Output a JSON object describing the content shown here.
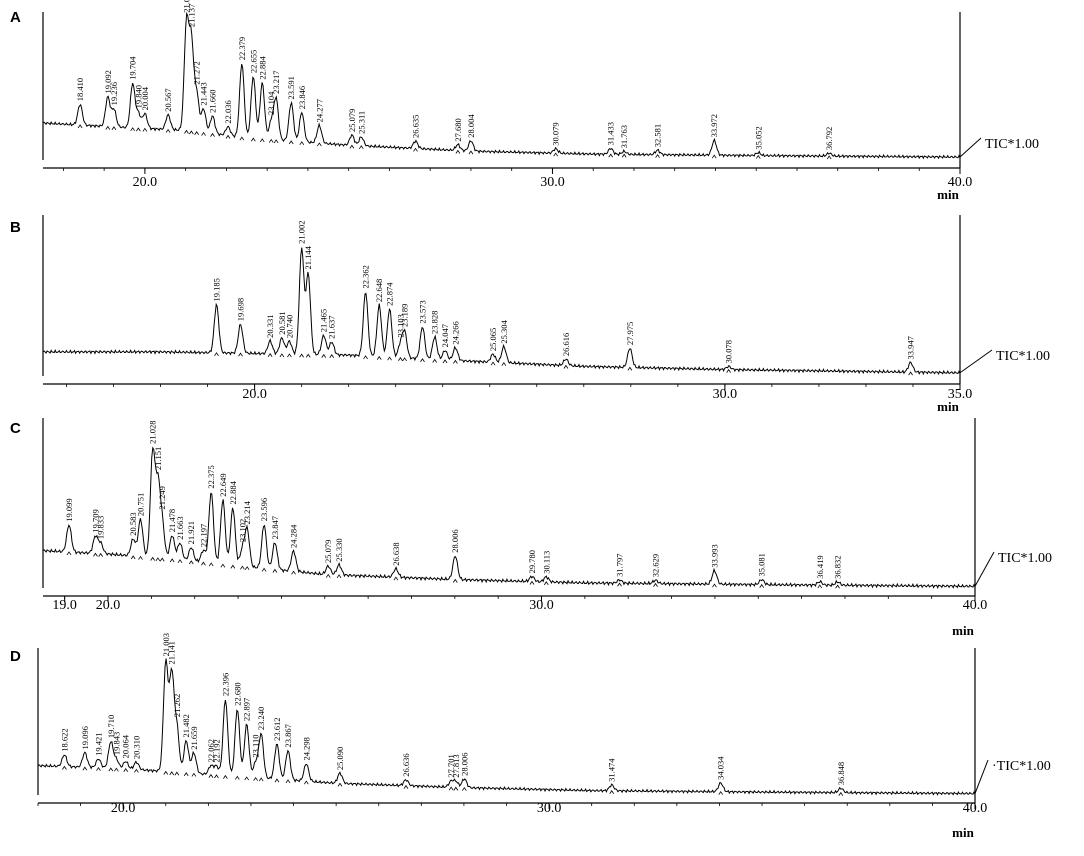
{
  "chart_data": [
    {
      "type": "line",
      "panel_label": "A",
      "trace_label": "TIC*1.00",
      "xlim": [
        17.5,
        40.0
      ],
      "xticks": [
        {
          "v": 20.0,
          "t": "20.0"
        },
        {
          "v": 30.0,
          "t": "30.0"
        },
        {
          "v": 40.0,
          "t": "40.0"
        }
      ],
      "xunit": "min",
      "baseline": [
        [
          17.5,
          0.25
        ],
        [
          19.5,
          0.22
        ],
        [
          21,
          0.2
        ],
        [
          22.5,
          0.15
        ],
        [
          25,
          0.1
        ],
        [
          28,
          0.06
        ],
        [
          31,
          0.04
        ],
        [
          35,
          0.03
        ],
        [
          40,
          0.02
        ]
      ],
      "peaks": [
        {
          "t": "18.410",
          "x": 18.41,
          "h": 0.14
        },
        {
          "t": "19.092",
          "x": 19.09,
          "h": 0.2
        },
        {
          "t": "19.236",
          "x": 19.24,
          "h": 0.12
        },
        {
          "t": "19.704",
          "x": 19.7,
          "h": 0.3
        },
        {
          "t": "19.840",
          "x": 19.84,
          "h": 0.1
        },
        {
          "t": "20.004",
          "x": 20.0,
          "h": 0.1
        },
        {
          "t": "20.567",
          "x": 20.57,
          "h": 0.1
        },
        {
          "t": "21.023",
          "x": 21.02,
          "h": 0.72
        },
        {
          "t": "21.137",
          "x": 21.14,
          "h": 0.6
        },
        {
          "t": "21.272",
          "x": 21.27,
          "h": 0.26
        },
        {
          "t": "21.443",
          "x": 21.44,
          "h": 0.16
        },
        {
          "t": "21.660",
          "x": 21.66,
          "h": 0.12
        },
        {
          "t": "22.036",
          "x": 22.04,
          "h": 0.06
        },
        {
          "t": "22.379",
          "x": 22.38,
          "h": 0.5
        },
        {
          "t": "22.655",
          "x": 22.66,
          "h": 0.42
        },
        {
          "t": "22.884",
          "x": 22.88,
          "h": 0.38
        },
        {
          "t": "23.104",
          "x": 23.1,
          "h": 0.12
        },
        {
          "t": "23.217",
          "x": 23.22,
          "h": 0.28
        },
        {
          "t": "23.591",
          "x": 23.59,
          "h": 0.26
        },
        {
          "t": "23.846",
          "x": 23.85,
          "h": 0.2
        },
        {
          "t": "24.277",
          "x": 24.28,
          "h": 0.12
        },
        {
          "t": "25.079",
          "x": 25.08,
          "h": 0.07
        },
        {
          "t": "25.311",
          "x": 25.31,
          "h": 0.06
        },
        {
          "t": "26.635",
          "x": 26.64,
          "h": 0.05
        },
        {
          "t": "27.680",
          "x": 27.68,
          "h": 0.04
        },
        {
          "t": "28.004",
          "x": 28.0,
          "h": 0.07
        },
        {
          "t": "30.079",
          "x": 30.08,
          "h": 0.03
        },
        {
          "t": "31.433",
          "x": 31.43,
          "h": 0.04
        },
        {
          "t": "31.763",
          "x": 31.76,
          "h": 0.02
        },
        {
          "t": "32.581",
          "x": 32.58,
          "h": 0.03
        },
        {
          "t": "33.972",
          "x": 33.97,
          "h": 0.1
        },
        {
          "t": "35.052",
          "x": 35.05,
          "h": 0.02
        },
        {
          "t": "36.792",
          "x": 36.79,
          "h": 0.02
        }
      ]
    },
    {
      "type": "line",
      "panel_label": "B",
      "trace_label": "TIC*1.00",
      "xlim": [
        15.5,
        35.0
      ],
      "xticks": [
        {
          "v": 20.0,
          "t": "20.0"
        },
        {
          "v": 30.0,
          "t": "30.0"
        },
        {
          "v": 35.0,
          "t": "35.0"
        }
      ],
      "xunit": "min",
      "baseline": [
        [
          15.5,
          0.15
        ],
        [
          18,
          0.15
        ],
        [
          20,
          0.14
        ],
        [
          22,
          0.13
        ],
        [
          24,
          0.1
        ],
        [
          27,
          0.06
        ],
        [
          30,
          0.04
        ],
        [
          35,
          0.02
        ]
      ],
      "peaks": [
        {
          "t": "19.185",
          "x": 19.19,
          "h": 0.3
        },
        {
          "t": "19.698",
          "x": 19.7,
          "h": 0.18
        },
        {
          "t": "20.331",
          "x": 20.33,
          "h": 0.08
        },
        {
          "t": "20.581",
          "x": 20.58,
          "h": 0.1
        },
        {
          "t": "20.740",
          "x": 20.74,
          "h": 0.08
        },
        {
          "t": "21.002",
          "x": 21.0,
          "h": 0.66
        },
        {
          "t": "21.144",
          "x": 21.14,
          "h": 0.5
        },
        {
          "t": "21.465",
          "x": 21.47,
          "h": 0.12
        },
        {
          "t": "21.637",
          "x": 21.64,
          "h": 0.08
        },
        {
          "t": "22.362",
          "x": 22.36,
          "h": 0.4
        },
        {
          "t": "22.648",
          "x": 22.65,
          "h": 0.32
        },
        {
          "t": "22.874",
          "x": 22.87,
          "h": 0.3
        },
        {
          "t": "23.103",
          "x": 23.1,
          "h": 0.08
        },
        {
          "t": "23.189",
          "x": 23.19,
          "h": 0.16
        },
        {
          "t": "23.573",
          "x": 23.57,
          "h": 0.2
        },
        {
          "t": "23.828",
          "x": 23.83,
          "h": 0.14
        },
        {
          "t": "24.047",
          "x": 24.05,
          "h": 0.06
        },
        {
          "t": "24.266",
          "x": 24.27,
          "h": 0.08
        },
        {
          "t": "25.065",
          "x": 25.07,
          "h": 0.05
        },
        {
          "t": "25.304",
          "x": 25.3,
          "h": 0.1
        },
        {
          "t": "26.616",
          "x": 26.62,
          "h": 0.04
        },
        {
          "t": "27.975",
          "x": 27.98,
          "h": 0.12
        },
        {
          "t": "30.078",
          "x": 30.08,
          "h": 0.02
        },
        {
          "t": "33.947",
          "x": 33.95,
          "h": 0.06
        }
      ]
    },
    {
      "type": "line",
      "panel_label": "C",
      "trace_label": "TIC*1.00",
      "xlim": [
        18.5,
        40.0
      ],
      "xticks": [
        {
          "v": 19.0,
          "t": "19.0"
        },
        {
          "v": 20.0,
          "t": "20.0"
        },
        {
          "v": 30.0,
          "t": "30.0"
        },
        {
          "v": 40.0,
          "t": "40.0"
        }
      ],
      "xunit": "min",
      "baseline": [
        [
          18.5,
          0.22
        ],
        [
          20,
          0.2
        ],
        [
          21.5,
          0.17
        ],
        [
          23,
          0.13
        ],
        [
          25,
          0.08
        ],
        [
          28,
          0.05
        ],
        [
          31,
          0.03
        ],
        [
          35,
          0.02
        ],
        [
          40,
          0.01
        ]
      ],
      "peaks": [
        {
          "t": "19.099",
          "x": 19.1,
          "h": 0.16
        },
        {
          "t": "19.709",
          "x": 19.71,
          "h": 0.1
        },
        {
          "t": "19.833",
          "x": 19.83,
          "h": 0.06
        },
        {
          "t": "20.583",
          "x": 20.58,
          "h": 0.1
        },
        {
          "t": "20.751",
          "x": 20.75,
          "h": 0.22
        },
        {
          "t": "21.028",
          "x": 21.03,
          "h": 0.62
        },
        {
          "t": "21.151",
          "x": 21.15,
          "h": 0.42
        },
        {
          "t": "21.249",
          "x": 21.25,
          "h": 0.2
        },
        {
          "t": "21.478",
          "x": 21.48,
          "h": 0.14
        },
        {
          "t": "21.663",
          "x": 21.66,
          "h": 0.1
        },
        {
          "t": "21.921",
          "x": 21.92,
          "h": 0.08
        },
        {
          "t": "22.197",
          "x": 22.2,
          "h": 0.07
        },
        {
          "t": "22.375",
          "x": 22.38,
          "h": 0.42
        },
        {
          "t": "22.649",
          "x": 22.65,
          "h": 0.38
        },
        {
          "t": "22.884",
          "x": 22.88,
          "h": 0.34
        },
        {
          "t": "23.102",
          "x": 23.1,
          "h": 0.1
        },
        {
          "t": "23.214",
          "x": 23.21,
          "h": 0.22
        },
        {
          "t": "23.596",
          "x": 23.6,
          "h": 0.26
        },
        {
          "t": "23.847",
          "x": 23.85,
          "h": 0.16
        },
        {
          "t": "24.284",
          "x": 24.28,
          "h": 0.12
        },
        {
          "t": "25.079",
          "x": 25.08,
          "h": 0.05
        },
        {
          "t": "25.330",
          "x": 25.33,
          "h": 0.06
        },
        {
          "t": "26.638",
          "x": 26.64,
          "h": 0.05
        },
        {
          "t": "28.006",
          "x": 28.01,
          "h": 0.14
        },
        {
          "t": "29.780",
          "x": 29.78,
          "h": 0.03
        },
        {
          "t": "30.113",
          "x": 30.11,
          "h": 0.03
        },
        {
          "t": "31.797",
          "x": 31.8,
          "h": 0.02
        },
        {
          "t": "32.629",
          "x": 32.63,
          "h": 0.02
        },
        {
          "t": "33.993",
          "x": 33.99,
          "h": 0.08
        },
        {
          "t": "35.081",
          "x": 35.08,
          "h": 0.03
        },
        {
          "t": "36.419",
          "x": 36.42,
          "h": 0.02
        },
        {
          "t": "36.832",
          "x": 36.83,
          "h": 0.02
        }
      ]
    },
    {
      "type": "line",
      "panel_label": "D",
      "trace_label": "·TIC*1.00",
      "xlim": [
        18.0,
        40.0
      ],
      "xticks": [
        {
          "v": 20.0,
          "t": "20.0"
        },
        {
          "v": 30.0,
          "t": "30.0"
        },
        {
          "v": 40.0,
          "t": "40.0"
        }
      ],
      "xunit": "min",
      "baseline": [
        [
          18,
          0.2
        ],
        [
          20,
          0.18
        ],
        [
          21.5,
          0.15
        ],
        [
          23,
          0.12
        ],
        [
          25,
          0.08
        ],
        [
          28,
          0.05
        ],
        [
          31,
          0.03
        ],
        [
          35,
          0.02
        ],
        [
          40,
          0.01
        ]
      ],
      "peaks": [
        {
          "t": "18.622",
          "x": 18.62,
          "h": 0.08
        },
        {
          "t": "19.096",
          "x": 19.1,
          "h": 0.1
        },
        {
          "t": "19.421",
          "x": 19.42,
          "h": 0.06
        },
        {
          "t": "19.710",
          "x": 19.71,
          "h": 0.18
        },
        {
          "t": "19.843",
          "x": 19.84,
          "h": 0.06
        },
        {
          "t": "20.064",
          "x": 20.06,
          "h": 0.05
        },
        {
          "t": "20.310",
          "x": 20.31,
          "h": 0.05
        },
        {
          "t": "21.003",
          "x": 21.0,
          "h": 0.74
        },
        {
          "t": "21.141",
          "x": 21.14,
          "h": 0.66
        },
        {
          "t": "21.262",
          "x": 21.26,
          "h": 0.3
        },
        {
          "t": "21.482",
          "x": 21.48,
          "h": 0.22
        },
        {
          "t": "21.659",
          "x": 21.66,
          "h": 0.14
        },
        {
          "t": "22.062",
          "x": 22.06,
          "h": 0.06
        },
        {
          "t": "22.192",
          "x": 22.19,
          "h": 0.06
        },
        {
          "t": "22.396",
          "x": 22.4,
          "h": 0.52
        },
        {
          "t": "22.680",
          "x": 22.68,
          "h": 0.46
        },
        {
          "t": "22.897",
          "x": 22.9,
          "h": 0.36
        },
        {
          "t": "23.110",
          "x": 23.11,
          "h": 0.1
        },
        {
          "t": "23.240",
          "x": 23.24,
          "h": 0.3
        },
        {
          "t": "23.612",
          "x": 23.61,
          "h": 0.24
        },
        {
          "t": "23.867",
          "x": 23.87,
          "h": 0.2
        },
        {
          "t": "24.298",
          "x": 24.3,
          "h": 0.12
        },
        {
          "t": "25.090",
          "x": 25.09,
          "h": 0.07
        },
        {
          "t": "26.636",
          "x": 26.64,
          "h": 0.04
        },
        {
          "t": "27.701",
          "x": 27.7,
          "h": 0.04
        },
        {
          "t": "27.813",
          "x": 27.81,
          "h": 0.04
        },
        {
          "t": "28.006",
          "x": 28.01,
          "h": 0.06
        },
        {
          "t": "31.474",
          "x": 31.47,
          "h": 0.04
        },
        {
          "t": "34.034",
          "x": 34.03,
          "h": 0.06
        },
        {
          "t": "36.848",
          "x": 36.85,
          "h": 0.03
        }
      ]
    }
  ]
}
